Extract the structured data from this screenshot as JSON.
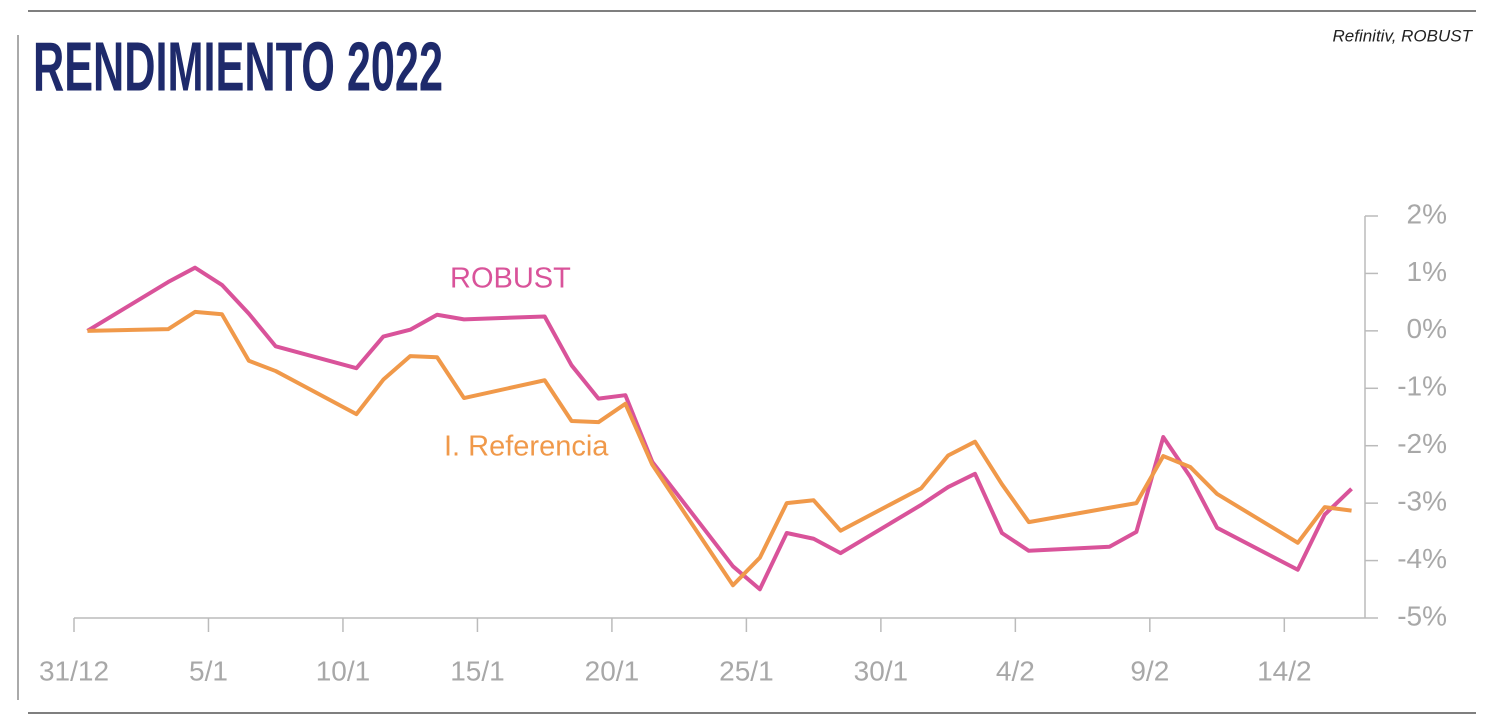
{
  "chart_data": {
    "type": "line",
    "title": "RENDIMIENTO 2022",
    "source": "Refinitiv, ROBUST",
    "x": [
      0.5,
      3.5,
      4.5,
      5.5,
      6.5,
      7.5,
      10.5,
      11.5,
      12.5,
      13.5,
      14.5,
      17.5,
      18.5,
      19.5,
      20.5,
      21.5,
      24.5,
      25.5,
      26.5,
      27.5,
      28.5,
      31.5,
      32.5,
      33.5,
      34.5,
      35.5,
      38.5,
      39.5,
      40.5,
      41.5,
      42.5,
      45.5,
      46.5,
      47.5
    ],
    "series": [
      {
        "name": "ROBUST",
        "color": "#d9539a",
        "values": [
          0,
          0.85,
          1.1,
          0.8,
          0.3,
          -0.27,
          -0.65,
          -0.1,
          0.02,
          0.28,
          0.2,
          0.25,
          -0.6,
          -1.18,
          -1.12,
          -2.28,
          -4.1,
          -4.5,
          -3.52,
          -3.62,
          -3.87,
          -3.03,
          -2.72,
          -2.49,
          -3.52,
          -3.83,
          -3.76,
          -3.5,
          -1.85,
          -2.54,
          -3.43,
          -4.16,
          -3.2,
          -2.75
        ]
      },
      {
        "name": "I. Referencia",
        "color": "#f0994a",
        "values": [
          0,
          0.03,
          0.33,
          0.29,
          -0.52,
          -0.7,
          -1.45,
          -0.85,
          -0.44,
          -0.46,
          -1.17,
          -0.86,
          -1.57,
          -1.59,
          -1.27,
          -2.33,
          -4.43,
          -3.95,
          -3.0,
          -2.95,
          -3.48,
          -2.74,
          -2.17,
          -1.93,
          -2.67,
          -3.33,
          -3.08,
          -3.0,
          -2.18,
          -2.37,
          -2.84,
          -3.69,
          -3.07,
          -3.13
        ]
      }
    ],
    "xlim": [
      0,
      48
    ],
    "xticks": [
      {
        "value": 0,
        "label": "31/12"
      },
      {
        "value": 5,
        "label": "5/1"
      },
      {
        "value": 10,
        "label": "10/1"
      },
      {
        "value": 15,
        "label": "15/1"
      },
      {
        "value": 20,
        "label": "20/1"
      },
      {
        "value": 25,
        "label": "25/1"
      },
      {
        "value": 30,
        "label": "30/1"
      },
      {
        "value": 35,
        "label": "4/2"
      },
      {
        "value": 40,
        "label": "9/2"
      },
      {
        "value": 45,
        "label": "14/2"
      }
    ],
    "ylim": [
      -5,
      2
    ],
    "yticks": [
      {
        "value": 2,
        "label": "2%"
      },
      {
        "value": 1,
        "label": "1%"
      },
      {
        "value": 0,
        "label": "0%"
      },
      {
        "value": -1,
        "label": "-1%"
      },
      {
        "value": -2,
        "label": "-2%"
      },
      {
        "value": -3,
        "label": "-3%"
      },
      {
        "value": -4,
        "label": "-4%"
      },
      {
        "value": -5,
        "label": "-5%"
      }
    ]
  }
}
